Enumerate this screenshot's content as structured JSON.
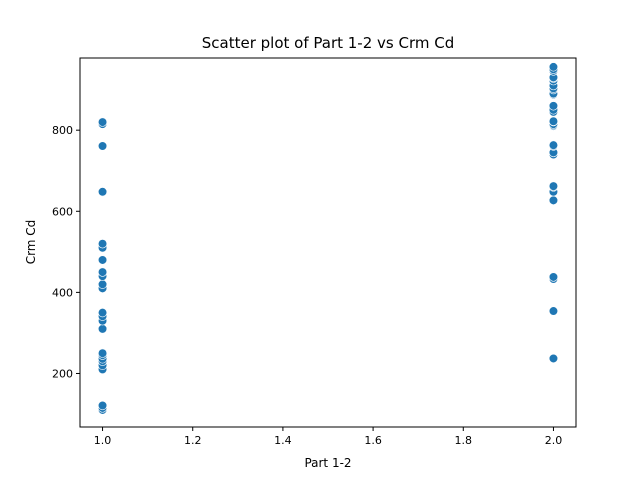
{
  "chart_data": {
    "type": "scatter",
    "title": "Scatter plot of Part 1-2 vs Crm Cd",
    "xlabel": "Part 1-2",
    "ylabel": "Crm Cd",
    "xlim": [
      0.95,
      2.05
    ],
    "ylim": [
      68,
      978
    ],
    "xticks": [
      1.0,
      1.2,
      1.4,
      1.6,
      1.8,
      2.0
    ],
    "xtick_labels": [
      "1.0",
      "1.2",
      "1.4",
      "1.6",
      "1.8",
      "2.0"
    ],
    "yticks": [
      200,
      400,
      600,
      800
    ],
    "ytick_labels": [
      "200",
      "400",
      "600",
      "800"
    ],
    "grid": false,
    "marker_color": "#1f77b4",
    "marker_edge_color": "#ffffff",
    "points": [
      {
        "x": 1,
        "y": 110
      },
      {
        "x": 1,
        "y": 115
      },
      {
        "x": 1,
        "y": 121
      },
      {
        "x": 1,
        "y": 210
      },
      {
        "x": 1,
        "y": 220
      },
      {
        "x": 1,
        "y": 230
      },
      {
        "x": 1,
        "y": 236
      },
      {
        "x": 1,
        "y": 245
      },
      {
        "x": 1,
        "y": 250
      },
      {
        "x": 1,
        "y": 310
      },
      {
        "x": 1,
        "y": 330
      },
      {
        "x": 1,
        "y": 341
      },
      {
        "x": 1,
        "y": 350
      },
      {
        "x": 1,
        "y": 410
      },
      {
        "x": 1,
        "y": 420
      },
      {
        "x": 1,
        "y": 440
      },
      {
        "x": 1,
        "y": 450
      },
      {
        "x": 1,
        "y": 480
      },
      {
        "x": 1,
        "y": 510
      },
      {
        "x": 1,
        "y": 520
      },
      {
        "x": 1,
        "y": 648
      },
      {
        "x": 1,
        "y": 761
      },
      {
        "x": 1,
        "y": 815
      },
      {
        "x": 1,
        "y": 820
      },
      {
        "x": 2,
        "y": 237
      },
      {
        "x": 2,
        "y": 354
      },
      {
        "x": 2,
        "y": 433
      },
      {
        "x": 2,
        "y": 438
      },
      {
        "x": 2,
        "y": 626
      },
      {
        "x": 2,
        "y": 627
      },
      {
        "x": 2,
        "y": 648
      },
      {
        "x": 2,
        "y": 660
      },
      {
        "x": 2,
        "y": 662
      },
      {
        "x": 2,
        "y": 740
      },
      {
        "x": 2,
        "y": 745
      },
      {
        "x": 2,
        "y": 761
      },
      {
        "x": 2,
        "y": 763
      },
      {
        "x": 2,
        "y": 810
      },
      {
        "x": 2,
        "y": 812
      },
      {
        "x": 2,
        "y": 815
      },
      {
        "x": 2,
        "y": 821
      },
      {
        "x": 2,
        "y": 822
      },
      {
        "x": 2,
        "y": 845
      },
      {
        "x": 2,
        "y": 850
      },
      {
        "x": 2,
        "y": 860
      },
      {
        "x": 2,
        "y": 888
      },
      {
        "x": 2,
        "y": 890
      },
      {
        "x": 2,
        "y": 900
      },
      {
        "x": 2,
        "y": 903
      },
      {
        "x": 2,
        "y": 910
      },
      {
        "x": 2,
        "y": 922
      },
      {
        "x": 2,
        "y": 928
      },
      {
        "x": 2,
        "y": 930
      },
      {
        "x": 2,
        "y": 946
      },
      {
        "x": 2,
        "y": 950
      },
      {
        "x": 2,
        "y": 956
      }
    ]
  }
}
